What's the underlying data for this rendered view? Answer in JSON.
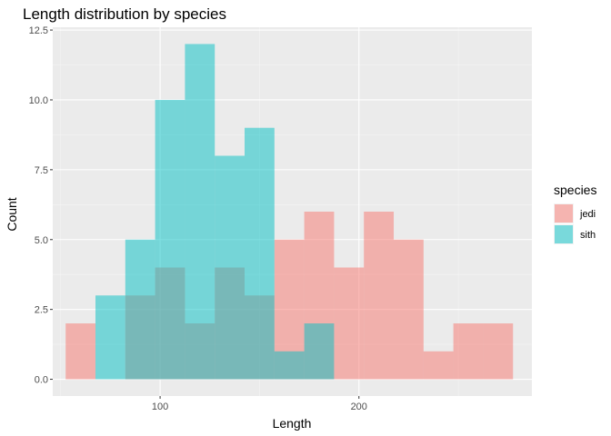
{
  "chart_data": {
    "type": "bar",
    "title": "Length distribution by species",
    "xlabel": "Length",
    "ylabel": "Count",
    "xlim": [
      46,
      287
    ],
    "ylim": [
      -0.6,
      12.6
    ],
    "x_ticks": [
      100,
      200
    ],
    "x_minor_ticks": [
      50,
      150,
      250
    ],
    "y_ticks": [
      0.0,
      2.5,
      5.0,
      7.5,
      10.0,
      12.5
    ],
    "y_tick_labels": [
      "0.0",
      "2.5",
      "5.0",
      "7.5",
      "10.0",
      "12.5"
    ],
    "bin_edges": [
      52.5,
      67.5,
      82.5,
      97.5,
      112.5,
      127.5,
      142.5,
      157.5,
      172.5,
      187.5,
      202.5,
      217.5,
      232.5,
      247.5,
      262.5,
      277.5
    ],
    "grid": true,
    "legend_position": "right",
    "legend_title": "species",
    "series": [
      {
        "name": "jedi",
        "color": "#F8766D",
        "values": [
          2,
          0,
          3,
          4,
          2,
          4,
          3,
          5,
          6,
          4,
          6,
          5,
          1,
          2,
          2
        ]
      },
      {
        "name": "sith",
        "color": "#00BFC4",
        "values": [
          0,
          3,
          5,
          10,
          12,
          8,
          9,
          1,
          2,
          0,
          0,
          0,
          0,
          0,
          0
        ]
      }
    ]
  }
}
